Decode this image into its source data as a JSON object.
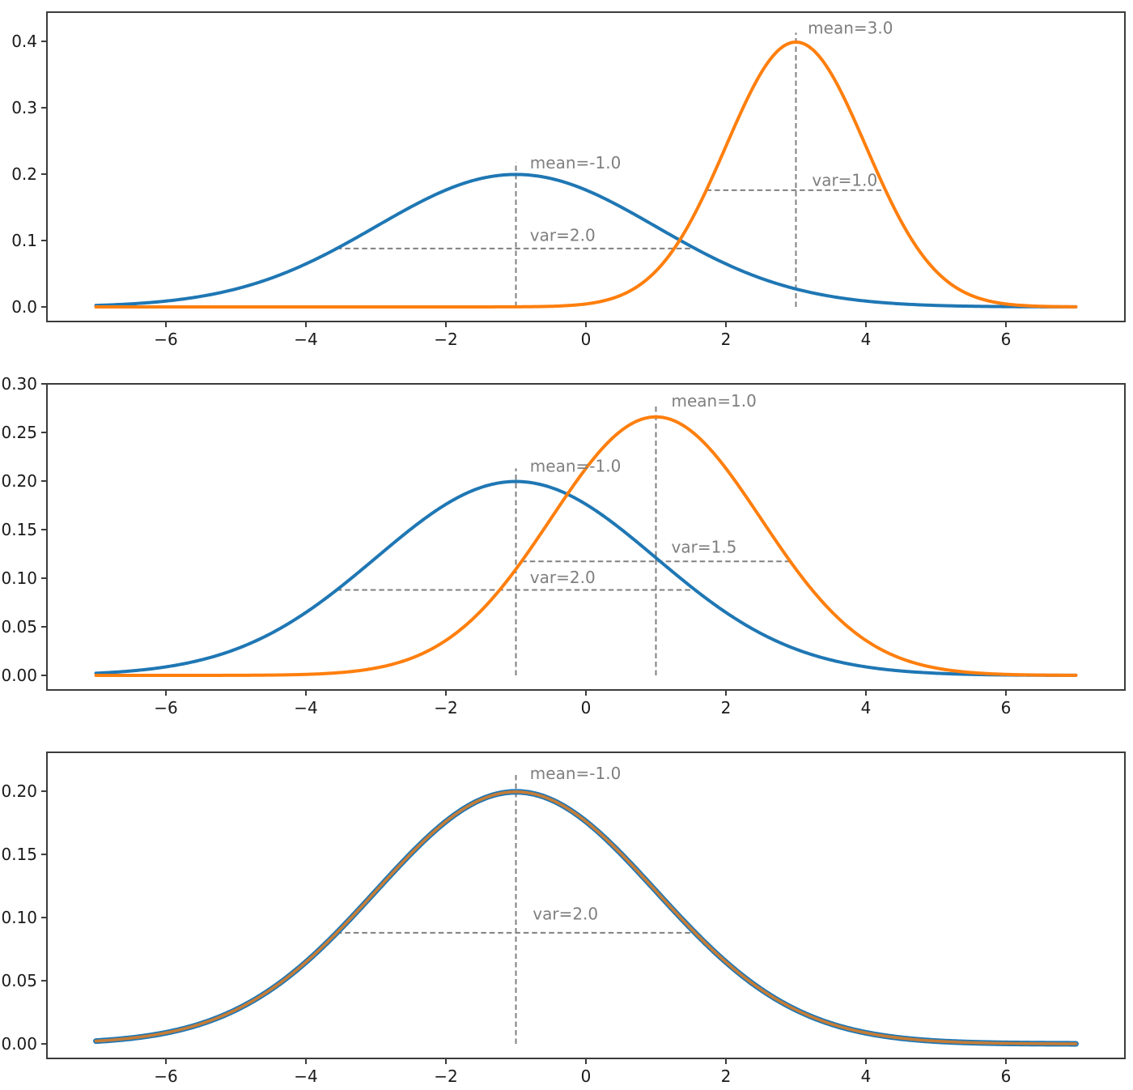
{
  "figure": {
    "background": "#ffffff",
    "num_subplots": 3
  },
  "palette": {
    "blue": "#1f77b4",
    "orange": "#ff7f0e",
    "dashed_gray": "#808080",
    "annotation_text": "#7f7f7f",
    "tick_text": "#1a1a1a",
    "spine": "#3c3c3c"
  },
  "chart_data": [
    {
      "type": "line",
      "xlim": [
        -7.7,
        7.7
      ],
      "ylim": [
        -0.022,
        0.444
      ],
      "curve_domain": [
        -7,
        7
      ],
      "grid": false,
      "legend": null,
      "x_ticks": {
        "values": [
          -6,
          -4,
          -2,
          0,
          2,
          4,
          6
        ],
        "labels": [
          "−6",
          "−4",
          "−2",
          "0",
          "2",
          "4",
          "6"
        ]
      },
      "y_ticks": {
        "values": [
          0.0,
          0.1,
          0.2,
          0.3,
          0.4
        ],
        "labels": [
          "0.0",
          "0.1",
          "0.2",
          "0.3",
          "0.4"
        ]
      },
      "series": [
        {
          "name": "gaussian-blue",
          "mean": -1.0,
          "var": 2.0,
          "peak": 0.1995,
          "color": "#1f77b4",
          "linewidth": 4,
          "opacity": 1
        },
        {
          "name": "gaussian-orange",
          "mean": 3.0,
          "var": 1.0,
          "peak": 0.3989,
          "color": "#ff7f0e",
          "linewidth": 4,
          "opacity": 1
        }
      ],
      "annotations": {
        "vlines": [
          {
            "x": -1.0,
            "y0": 0.0,
            "y1": 0.218
          },
          {
            "x": 3.0,
            "y0": 0.0,
            "y1": 0.413
          }
        ],
        "hlines": [
          {
            "y": 0.0879,
            "x0": -3.563,
            "x1": 1.563
          },
          {
            "y": 0.1758,
            "x0": 1.718,
            "x1": 4.282
          }
        ],
        "labels": [
          {
            "text": "mean=-1.0",
            "x": -0.8,
            "y": 0.217
          },
          {
            "text": "var=2.0",
            "x": -0.8,
            "y": 0.108
          },
          {
            "text": "mean=3.0",
            "x": 3.17,
            "y": 0.42
          },
          {
            "text": "var=1.0",
            "x": 3.23,
            "y": 0.191
          }
        ]
      }
    },
    {
      "type": "line",
      "xlim": [
        -7.7,
        7.7
      ],
      "ylim": [
        -0.015,
        0.3
      ],
      "curve_domain": [
        -7,
        7
      ],
      "grid": false,
      "legend": null,
      "x_ticks": {
        "values": [
          -6,
          -4,
          -2,
          0,
          2,
          4,
          6
        ],
        "labels": [
          "−6",
          "−4",
          "−2",
          "0",
          "2",
          "4",
          "6"
        ]
      },
      "y_ticks": {
        "values": [
          0.0,
          0.05,
          0.1,
          0.15,
          0.2,
          0.25,
          0.3
        ],
        "labels": [
          "0.00",
          "0.05",
          "0.10",
          "0.15",
          "0.20",
          "0.25",
          "0.30"
        ]
      },
      "series": [
        {
          "name": "gaussian-blue",
          "mean": -1.0,
          "var": 2.0,
          "peak": 0.1995,
          "color": "#1f77b4",
          "linewidth": 4,
          "opacity": 1
        },
        {
          "name": "gaussian-orange",
          "mean": 1.0,
          "var": 1.5,
          "peak": 0.266,
          "color": "#ff7f0e",
          "linewidth": 4,
          "opacity": 1
        }
      ],
      "annotations": {
        "vlines": [
          {
            "x": -1.0,
            "y0": 0.0,
            "y1": 0.213
          },
          {
            "x": 1.0,
            "y0": 0.0,
            "y1": 0.28
          }
        ],
        "hlines": [
          {
            "y": 0.0879,
            "x0": -3.563,
            "x1": 1.563
          },
          {
            "y": 0.1173,
            "x0": -0.922,
            "x1": 2.922
          }
        ],
        "labels": [
          {
            "text": "mean=1.0",
            "x": 1.22,
            "y": 0.2825
          },
          {
            "text": "mean=-1.0",
            "x": -0.8,
            "y": 0.2155
          },
          {
            "text": "var=1.5",
            "x": 1.22,
            "y": 0.132
          },
          {
            "text": "var=2.0",
            "x": -0.8,
            "y": 0.101
          }
        ]
      }
    },
    {
      "type": "line",
      "xlim": [
        -7.7,
        7.7
      ],
      "ylim": [
        -0.0115,
        0.2308
      ],
      "curve_domain": [
        -7,
        7
      ],
      "grid": false,
      "legend": null,
      "x_ticks": {
        "values": [
          -6,
          -4,
          -2,
          0,
          2,
          4,
          6
        ],
        "labels": [
          "−6",
          "−4",
          "−2",
          "0",
          "2",
          "4",
          "6"
        ]
      },
      "y_ticks": {
        "values": [
          0.0,
          0.05,
          0.1,
          0.15,
          0.2
        ],
        "labels": [
          "0.00",
          "0.05",
          "0.10",
          "0.15",
          "0.20"
        ]
      },
      "series": [
        {
          "name": "gaussian-blue",
          "mean": -1.0,
          "var": 2.0,
          "peak": 0.1995,
          "color": "#1f77b4",
          "linewidth": 7,
          "opacity": 1
        },
        {
          "name": "gaussian-orange-overlap",
          "mean": -1.0,
          "var": 2.0,
          "peak": 0.1995,
          "color": "#ff7f0e",
          "linewidth": 3.6,
          "opacity": 0.75
        }
      ],
      "annotations": {
        "vlines": [
          {
            "x": -1.0,
            "y0": 0.0,
            "y1": 0.215
          }
        ],
        "hlines": [
          {
            "y": 0.0879,
            "x0": -3.563,
            "x1": 1.563
          }
        ],
        "labels": [
          {
            "text": "mean=-1.0",
            "x": -0.8,
            "y": 0.214
          },
          {
            "text": "var=2.0",
            "x": -0.76,
            "y": 0.103
          }
        ]
      }
    }
  ]
}
